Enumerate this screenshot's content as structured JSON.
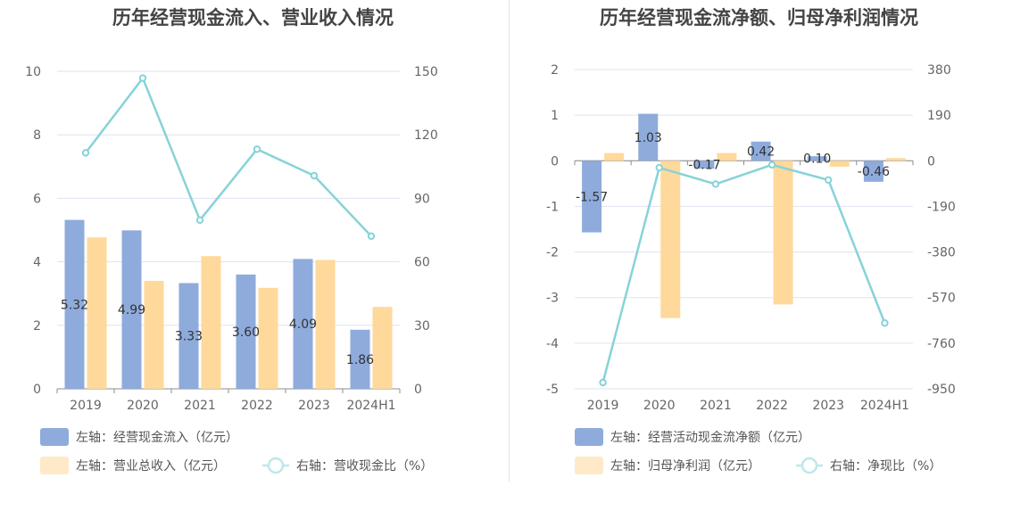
{
  "colors": {
    "bar_primary": "#8eabdc",
    "bar_secondary": "#ffd99b",
    "bar_secondary_legend": "#ffe9c8",
    "line": "#86d3d8",
    "line_legend": "#bde8eb",
    "grid": "#dfe3ef",
    "axis": "#8c8c8c"
  },
  "chart_data": [
    {
      "type": "bar",
      "title": "历年经营现金流入、营业收入情况",
      "categories": [
        "2019",
        "2020",
        "2021",
        "2022",
        "2023",
        "2024H1"
      ],
      "y_left": {
        "ticks": [
          "0",
          "2",
          "4",
          "6",
          "8",
          "10"
        ],
        "ylim": [
          0,
          10
        ]
      },
      "y_right": {
        "ticks": [
          "0",
          "30",
          "60",
          "90",
          "120",
          "150"
        ],
        "ylim": [
          0,
          150
        ]
      },
      "grid": true,
      "legend_position": "bottom",
      "series": [
        {
          "name": "左轴：经营现金流入（亿元）",
          "type": "bar",
          "axis": "left",
          "values": [
            5.32,
            4.99,
            3.33,
            3.6,
            4.09,
            1.86
          ],
          "labels": [
            "5.32",
            "4.99",
            "3.33",
            "3.60",
            "4.09",
            "1.86"
          ]
        },
        {
          "name": "左轴：营业总收入（亿元）",
          "type": "bar",
          "axis": "left",
          "values": [
            4.77,
            3.4,
            4.18,
            3.18,
            4.06,
            2.58
          ]
        },
        {
          "name": "右轴：营收现金比（%）",
          "type": "line",
          "axis": "right",
          "values": [
            111.5,
            146.8,
            79.7,
            113.2,
            100.7,
            72.1
          ]
        }
      ]
    },
    {
      "type": "bar",
      "title": "历年经营现金流净额、归母净利润情况",
      "categories": [
        "2019",
        "2020",
        "2021",
        "2022",
        "2023",
        "2024H1"
      ],
      "y_left": {
        "ticks": [
          "-5",
          "-4",
          "-3",
          "-2",
          "-1",
          "0",
          "1",
          "2"
        ],
        "ylim": [
          -5,
          2
        ]
      },
      "y_right": {
        "ticks": [
          "-950",
          "-760",
          "-570",
          "-380",
          "-190",
          "0",
          "190",
          "380"
        ],
        "ylim": [
          -950,
          380
        ]
      },
      "grid": true,
      "legend_position": "bottom",
      "series": [
        {
          "name": "左轴：经营活动现金流净额（亿元）",
          "type": "bar",
          "axis": "left",
          "values": [
            -1.57,
            1.03,
            -0.17,
            0.42,
            0.1,
            -0.46
          ],
          "labels": [
            "-1.57",
            "1.03",
            "-0.17",
            "0.42",
            "0.10",
            "-0.46"
          ]
        },
        {
          "name": "左轴：归母净利润（亿元）",
          "type": "bar",
          "axis": "left",
          "values": [
            0.17,
            -3.45,
            0.17,
            -3.15,
            -0.13,
            0.06
          ]
        },
        {
          "name": "右轴：净现比（%）",
          "type": "line",
          "axis": "right",
          "values": [
            -924,
            -29,
            -97,
            -17,
            -80,
            -676
          ]
        }
      ]
    }
  ]
}
